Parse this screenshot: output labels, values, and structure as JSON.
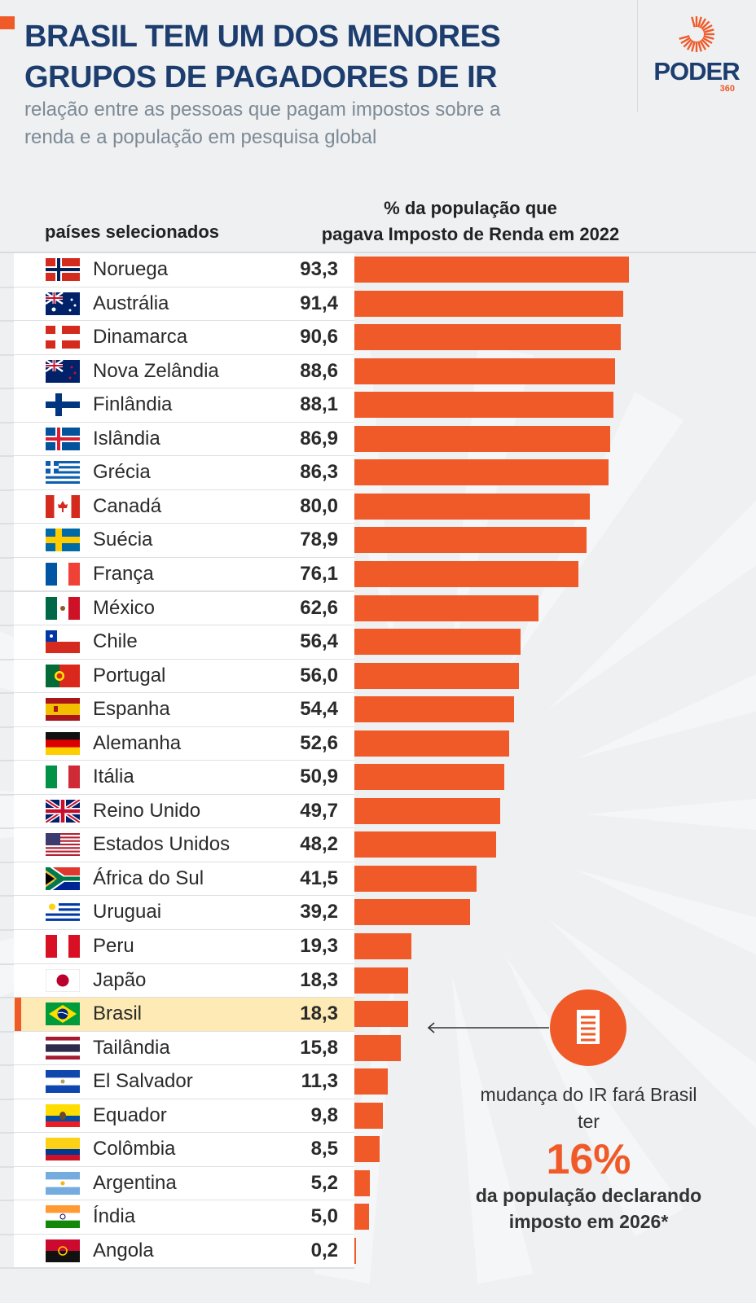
{
  "header": {
    "title_line1": "BRASIL TEM UM DOS MENORES",
    "title_line2": "GRUPOS DE PAGADORES DE IR",
    "subtitle_line1": "relação entre as pessoas que pagam impostos sobre a",
    "subtitle_line2": "renda e a população em pesquisa global",
    "logo_word": "PODER",
    "logo_num": "360"
  },
  "colors": {
    "bar": "#f05a28",
    "title": "#1c3d6e",
    "highlight": "#fdeab4"
  },
  "chart_data": {
    "type": "bar",
    "orientation": "horizontal",
    "title": "BRASIL TEM UM DOS MENORES GRUPOS DE PAGADORES DE IR",
    "xlabel_line1": "% da população que",
    "xlabel_line2": "pagava Imposto de Renda em 2022",
    "ylabel": "países selecionados",
    "xlim": [
      0,
      100
    ],
    "highlight": "Brasil",
    "categories": [
      "Noruega",
      "Austrália",
      "Dinamarca",
      "Nova Zelândia",
      "Finlândia",
      "Islândia",
      "Grécia",
      "Canadá",
      "Suécia",
      "França",
      "México",
      "Chile",
      "Portugal",
      "Espanha",
      "Alemanha",
      "Itália",
      "Reino Unido",
      "Estados Unidos",
      "África do Sul",
      "Uruguai",
      "Peru",
      "Japão",
      "Brasil",
      "Tailândia",
      "El Salvador",
      "Equador",
      "Colômbia",
      "Argentina",
      "Índia",
      "Angola"
    ],
    "flags": [
      "no",
      "au",
      "dk",
      "nz",
      "fi",
      "is",
      "gr",
      "ca",
      "se",
      "fr",
      "mx",
      "cl",
      "pt",
      "es",
      "de",
      "it",
      "gb",
      "us",
      "za",
      "uy",
      "pe",
      "jp",
      "br",
      "th",
      "sv",
      "ec",
      "co",
      "ar",
      "in",
      "ao"
    ],
    "labels": [
      "93,3",
      "91,4",
      "90,6",
      "88,6",
      "88,1",
      "86,9",
      "86,3",
      "80,0",
      "78,9",
      "76,1",
      "62,6",
      "56,4",
      "56,0",
      "54,4",
      "52,6",
      "50,9",
      "49,7",
      "48,2",
      "41,5",
      "39,2",
      "19,3",
      "18,3",
      "18,3",
      "15,8",
      "11,3",
      "9,8",
      "8,5",
      "5,2",
      "5,0",
      "0,2"
    ],
    "values": [
      93.3,
      91.4,
      90.6,
      88.6,
      88.1,
      86.9,
      86.3,
      80.0,
      78.9,
      76.1,
      62.6,
      56.4,
      56.0,
      54.4,
      52.6,
      50.9,
      49.7,
      48.2,
      41.5,
      39.2,
      19.3,
      18.3,
      18.3,
      15.8,
      11.3,
      9.8,
      8.5,
      5.2,
      5.0,
      0.2
    ]
  },
  "callout": {
    "icon": "document-icon",
    "line1": "mudança do IR fará Brasil",
    "line2": "ter",
    "big": "16%",
    "line3": "da população declarando",
    "line4": "imposto em 2026*"
  }
}
